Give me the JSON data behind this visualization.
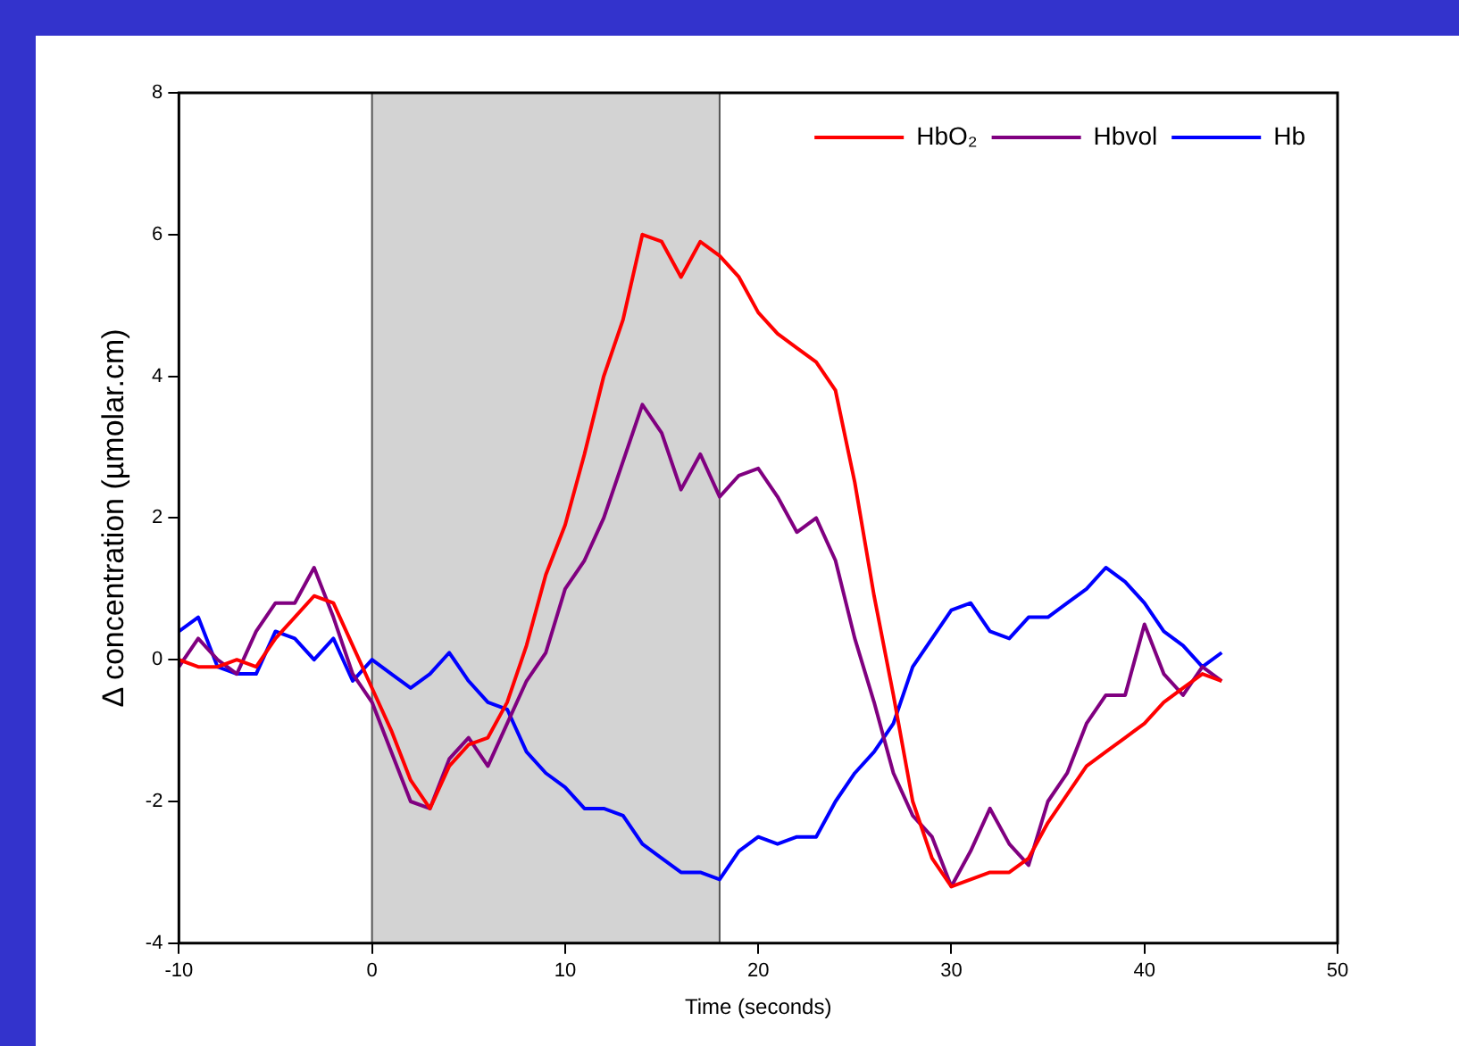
{
  "chart_data": {
    "type": "line",
    "xlabel": "Time (seconds)",
    "ylabel": "Δ concentration (µmolar.cm)",
    "x": [
      -10,
      -9,
      -8,
      -7,
      -6,
      -5,
      -4,
      -3,
      -2,
      -1,
      0,
      1,
      2,
      3,
      4,
      5,
      6,
      7,
      8,
      9,
      10,
      11,
      12,
      13,
      14,
      15,
      16,
      17,
      18,
      19,
      20,
      21,
      22,
      23,
      24,
      25,
      26,
      27,
      28,
      29,
      30,
      31,
      32,
      33,
      34,
      35,
      36,
      37,
      38,
      39,
      40,
      41,
      42,
      43,
      44
    ],
    "series": [
      {
        "name": "HbO₂",
        "color": "#ff0000",
        "values": [
          0,
          -0.1,
          -0.1,
          0,
          -0.1,
          0.3,
          0.6,
          0.9,
          0.8,
          0.2,
          -0.4,
          -1.0,
          -1.7,
          -2.1,
          -1.5,
          -1.2,
          -1.1,
          -0.6,
          0.2,
          1.2,
          1.9,
          2.9,
          4.0,
          4.8,
          6.0,
          5.9,
          5.4,
          5.9,
          5.7,
          5.4,
          4.9,
          4.6,
          4.4,
          4.2,
          3.8,
          2.5,
          0.9,
          -0.5,
          -2.0,
          -2.8,
          -3.2,
          -3.1,
          -3.0,
          -3.0,
          -2.8,
          -2.3,
          -1.9,
          -1.5,
          -1.3,
          -1.1,
          -0.9,
          -0.6,
          -0.4,
          -0.2,
          -0.3
        ]
      },
      {
        "name": "Hbvol",
        "color": "#800080",
        "values": [
          -0.1,
          0.3,
          0,
          -0.2,
          0.4,
          0.8,
          0.8,
          1.3,
          0.6,
          -0.2,
          -0.6,
          -1.3,
          -2.0,
          -2.1,
          -1.4,
          -1.1,
          -1.5,
          -0.9,
          -0.3,
          0.1,
          1.0,
          1.4,
          2.0,
          2.8,
          3.6,
          3.2,
          2.4,
          2.9,
          2.3,
          2.6,
          2.7,
          2.3,
          1.8,
          2.0,
          1.4,
          0.3,
          -0.6,
          -1.6,
          -2.2,
          -2.5,
          -3.2,
          -2.7,
          -2.1,
          -2.6,
          -2.9,
          -2.0,
          -1.6,
          -0.9,
          -0.5,
          -0.5,
          0.5,
          -0.2,
          -0.5,
          -0.1,
          -0.3
        ]
      },
      {
        "name": "Hb",
        "color": "#0000ff",
        "values": [
          0.4,
          0.6,
          -0.1,
          -0.2,
          -0.2,
          0.4,
          0.3,
          0,
          0.3,
          -0.3,
          0,
          -0.2,
          -0.4,
          -0.2,
          0.1,
          -0.3,
          -0.6,
          -0.7,
          -1.3,
          -1.6,
          -1.8,
          -2.1,
          -2.1,
          -2.2,
          -2.6,
          -2.8,
          -3.0,
          -3.0,
          -3.1,
          -2.7,
          -2.5,
          -2.6,
          -2.5,
          -2.5,
          -2.0,
          -1.6,
          -1.3,
          -0.9,
          -0.1,
          0.3,
          0.7,
          0.8,
          0.4,
          0.3,
          0.6,
          0.6,
          0.8,
          1.0,
          1.3,
          1.1,
          0.8,
          0.4,
          0.2,
          -0.1,
          0.1
        ]
      }
    ],
    "xlim": [
      -10,
      50
    ],
    "xticks": [
      -10,
      0,
      10,
      20,
      30,
      40,
      50
    ],
    "ylim": [
      -4,
      8
    ],
    "yticks": [
      -4,
      -2,
      0,
      2,
      4,
      6,
      8
    ],
    "bands": [
      {
        "axis": "x",
        "from": 0,
        "to": 18,
        "color": "#d3d3d3"
      }
    ],
    "legend": "top right",
    "grid": false,
    "marker": "none",
    "line_style": "solid"
  }
}
